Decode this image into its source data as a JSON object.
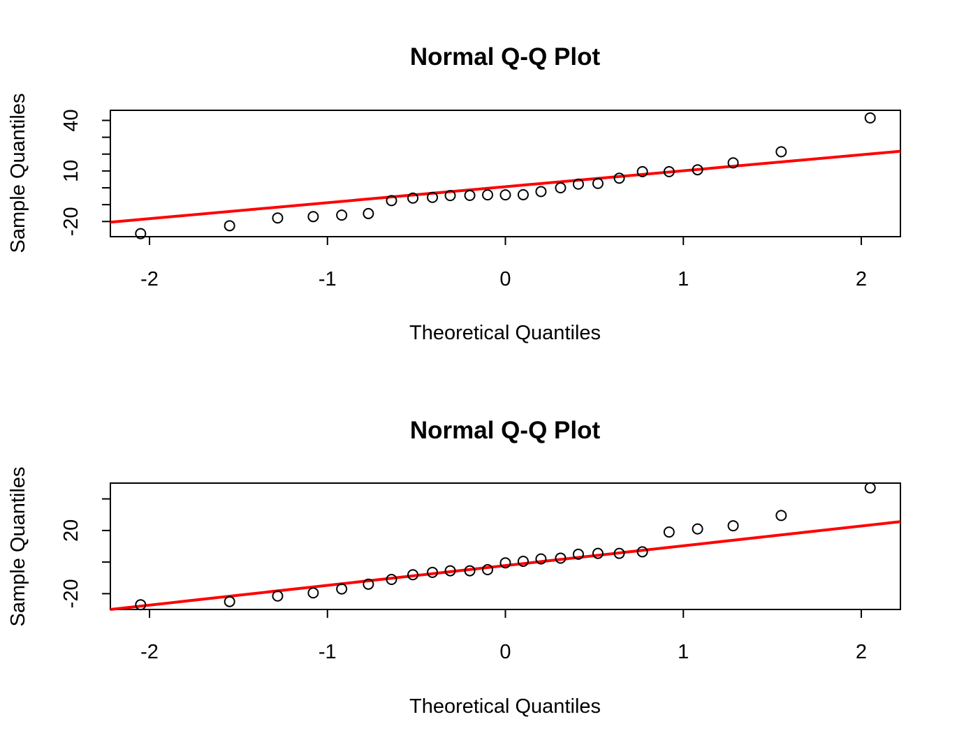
{
  "chart_data": [
    {
      "type": "scatter",
      "title": "Normal Q-Q Plot",
      "xlabel": "Theoretical Quantiles",
      "ylabel": "Sample Quantiles",
      "xlim": [
        -2.22,
        2.22
      ],
      "ylim": [
        -29,
        46
      ],
      "x_ticks": [
        -2,
        -1,
        0,
        1,
        2
      ],
      "x_tick_labels": [
        "-2",
        "-1",
        "0",
        "1",
        "2"
      ],
      "y_ticks": [
        -20,
        -10,
        0,
        10,
        20,
        30,
        40
      ],
      "y_tick_labels": [
        "-20",
        "",
        "",
        "10",
        "",
        "",
        "40"
      ],
      "points_color": "#000000",
      "line_color": "#ff0000",
      "line": {
        "x": [
          -2.22,
          2.22
        ],
        "y": [
          -20.4,
          21.7
        ]
      },
      "x": [
        -2.05,
        -1.55,
        -1.28,
        -1.08,
        -0.92,
        -0.77,
        -0.64,
        -0.52,
        -0.41,
        -0.31,
        -0.2,
        -0.1,
        0,
        0.1,
        0.2,
        0.31,
        0.41,
        0.52,
        0.64,
        0.77,
        0.92,
        1.08,
        1.28,
        1.55,
        2.05
      ],
      "y": [
        -27.2,
        -22.5,
        -17.9,
        -17.1,
        -16.2,
        -15.3,
        -7.6,
        -6.1,
        -5.7,
        -4.6,
        -4.5,
        -4.2,
        -4.2,
        -4.1,
        -2.2,
        0.0,
        2.2,
        2.6,
        5.7,
        9.6,
        9.6,
        10.7,
        14.8,
        21.4,
        41.5
      ]
    },
    {
      "type": "scatter",
      "title": "Normal Q-Q Plot",
      "xlabel": "Theoretical Quantiles",
      "ylabel": "Sample Quantiles",
      "xlim": [
        -2.22,
        2.22
      ],
      "ylim": [
        -30,
        50
      ],
      "x_ticks": [
        -2,
        -1,
        0,
        1,
        2
      ],
      "x_tick_labels": [
        "-2",
        "-1",
        "0",
        "1",
        "2"
      ],
      "y_ticks": [
        -20,
        0,
        20,
        40
      ],
      "y_tick_labels": [
        "-20",
        "",
        "20",
        ""
      ],
      "points_color": "#000000",
      "line_color": "#ff0000",
      "line": {
        "x": [
          -2.22,
          2.22
        ],
        "y": [
          -30,
          25.6
        ]
      },
      "x": [
        -2.05,
        -1.55,
        -1.28,
        -1.08,
        -0.92,
        -0.77,
        -0.64,
        -0.52,
        -0.41,
        -0.31,
        -0.2,
        -0.1,
        0,
        0.1,
        0.2,
        0.31,
        0.41,
        0.52,
        0.64,
        0.77,
        0.92,
        1.08,
        1.28,
        1.55,
        2.05
      ],
      "y": [
        -27,
        -25,
        -21.5,
        -19.5,
        -17,
        -14,
        -11,
        -8,
        -6.5,
        -5.5,
        -5.5,
        -4.8,
        -0.5,
        0.5,
        2,
        2.5,
        5,
        5.5,
        5.5,
        6.5,
        19,
        21,
        23,
        29.5,
        47
      ]
    }
  ]
}
